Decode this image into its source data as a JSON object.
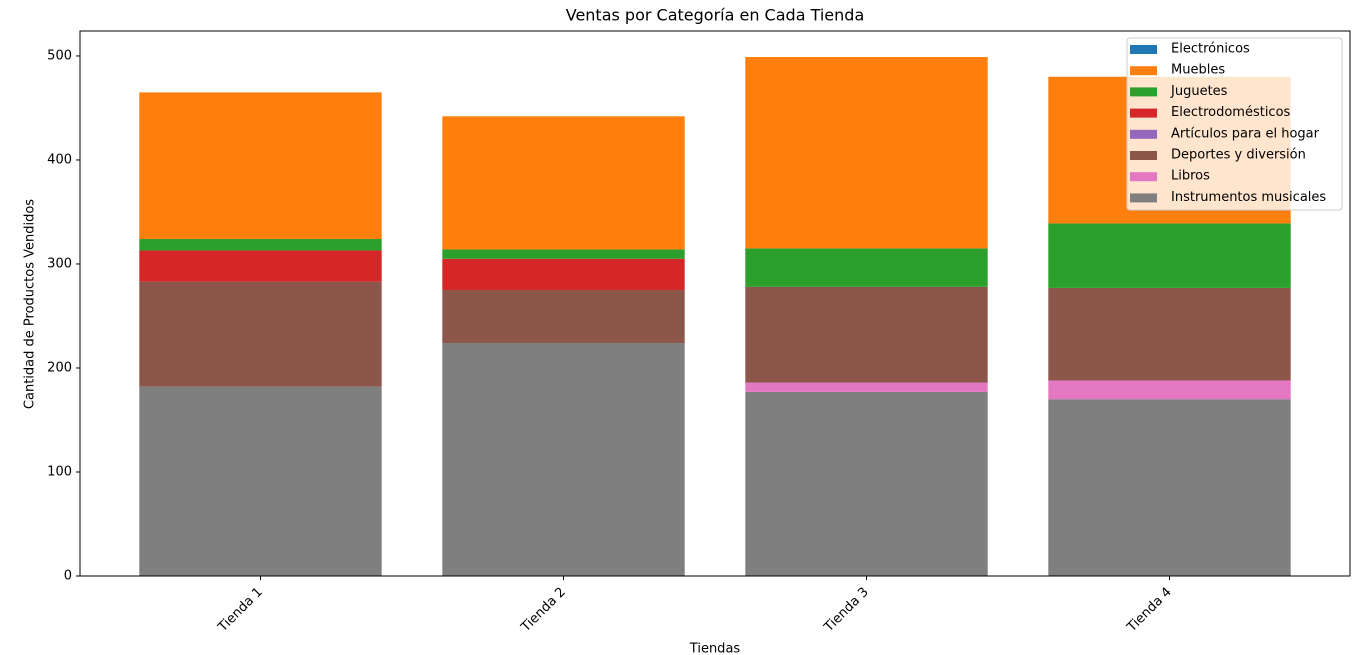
{
  "chart_data": {
    "type": "stacked-bar",
    "title": "Ventas por Categoría en Cada Tienda",
    "x_label": "Tiendas",
    "y_label": "Cantidad de Productos Vendidos",
    "categories": [
      "Tienda 1",
      "Tienda 2",
      "Tienda 3",
      "Tienda 4"
    ],
    "series": [
      {
        "name": "Electrónicos",
        "color": "#1f77b4",
        "values": [
          0,
          0,
          0,
          0
        ]
      },
      {
        "name": "Muebles",
        "color": "#ff7f0e",
        "values": [
          141,
          128,
          184,
          141
        ]
      },
      {
        "name": "Juguetes",
        "color": "#2ca02c",
        "values": [
          11,
          9,
          37,
          62
        ]
      },
      {
        "name": "Electrodomésticos",
        "color": "#d62728",
        "values": [
          30,
          30,
          0,
          0
        ]
      },
      {
        "name": "Artículos para el hogar",
        "color": "#9467bd",
        "values": [
          0,
          0,
          0,
          0
        ]
      },
      {
        "name": "Deportes y diversión",
        "color": "#8c564b",
        "values": [
          101,
          51,
          92,
          89
        ]
      },
      {
        "name": "Libros",
        "color": "#e377c2",
        "values": [
          0,
          0,
          9,
          18
        ]
      },
      {
        "name": "Instrumentos musicales",
        "color": "#7f7f7f",
        "values": [
          182,
          224,
          177,
          170
        ]
      }
    ],
    "ylim": [
      0,
      524
    ],
    "yticks": [
      0,
      100,
      200,
      300,
      400,
      500
    ],
    "legend": "upper right"
  }
}
